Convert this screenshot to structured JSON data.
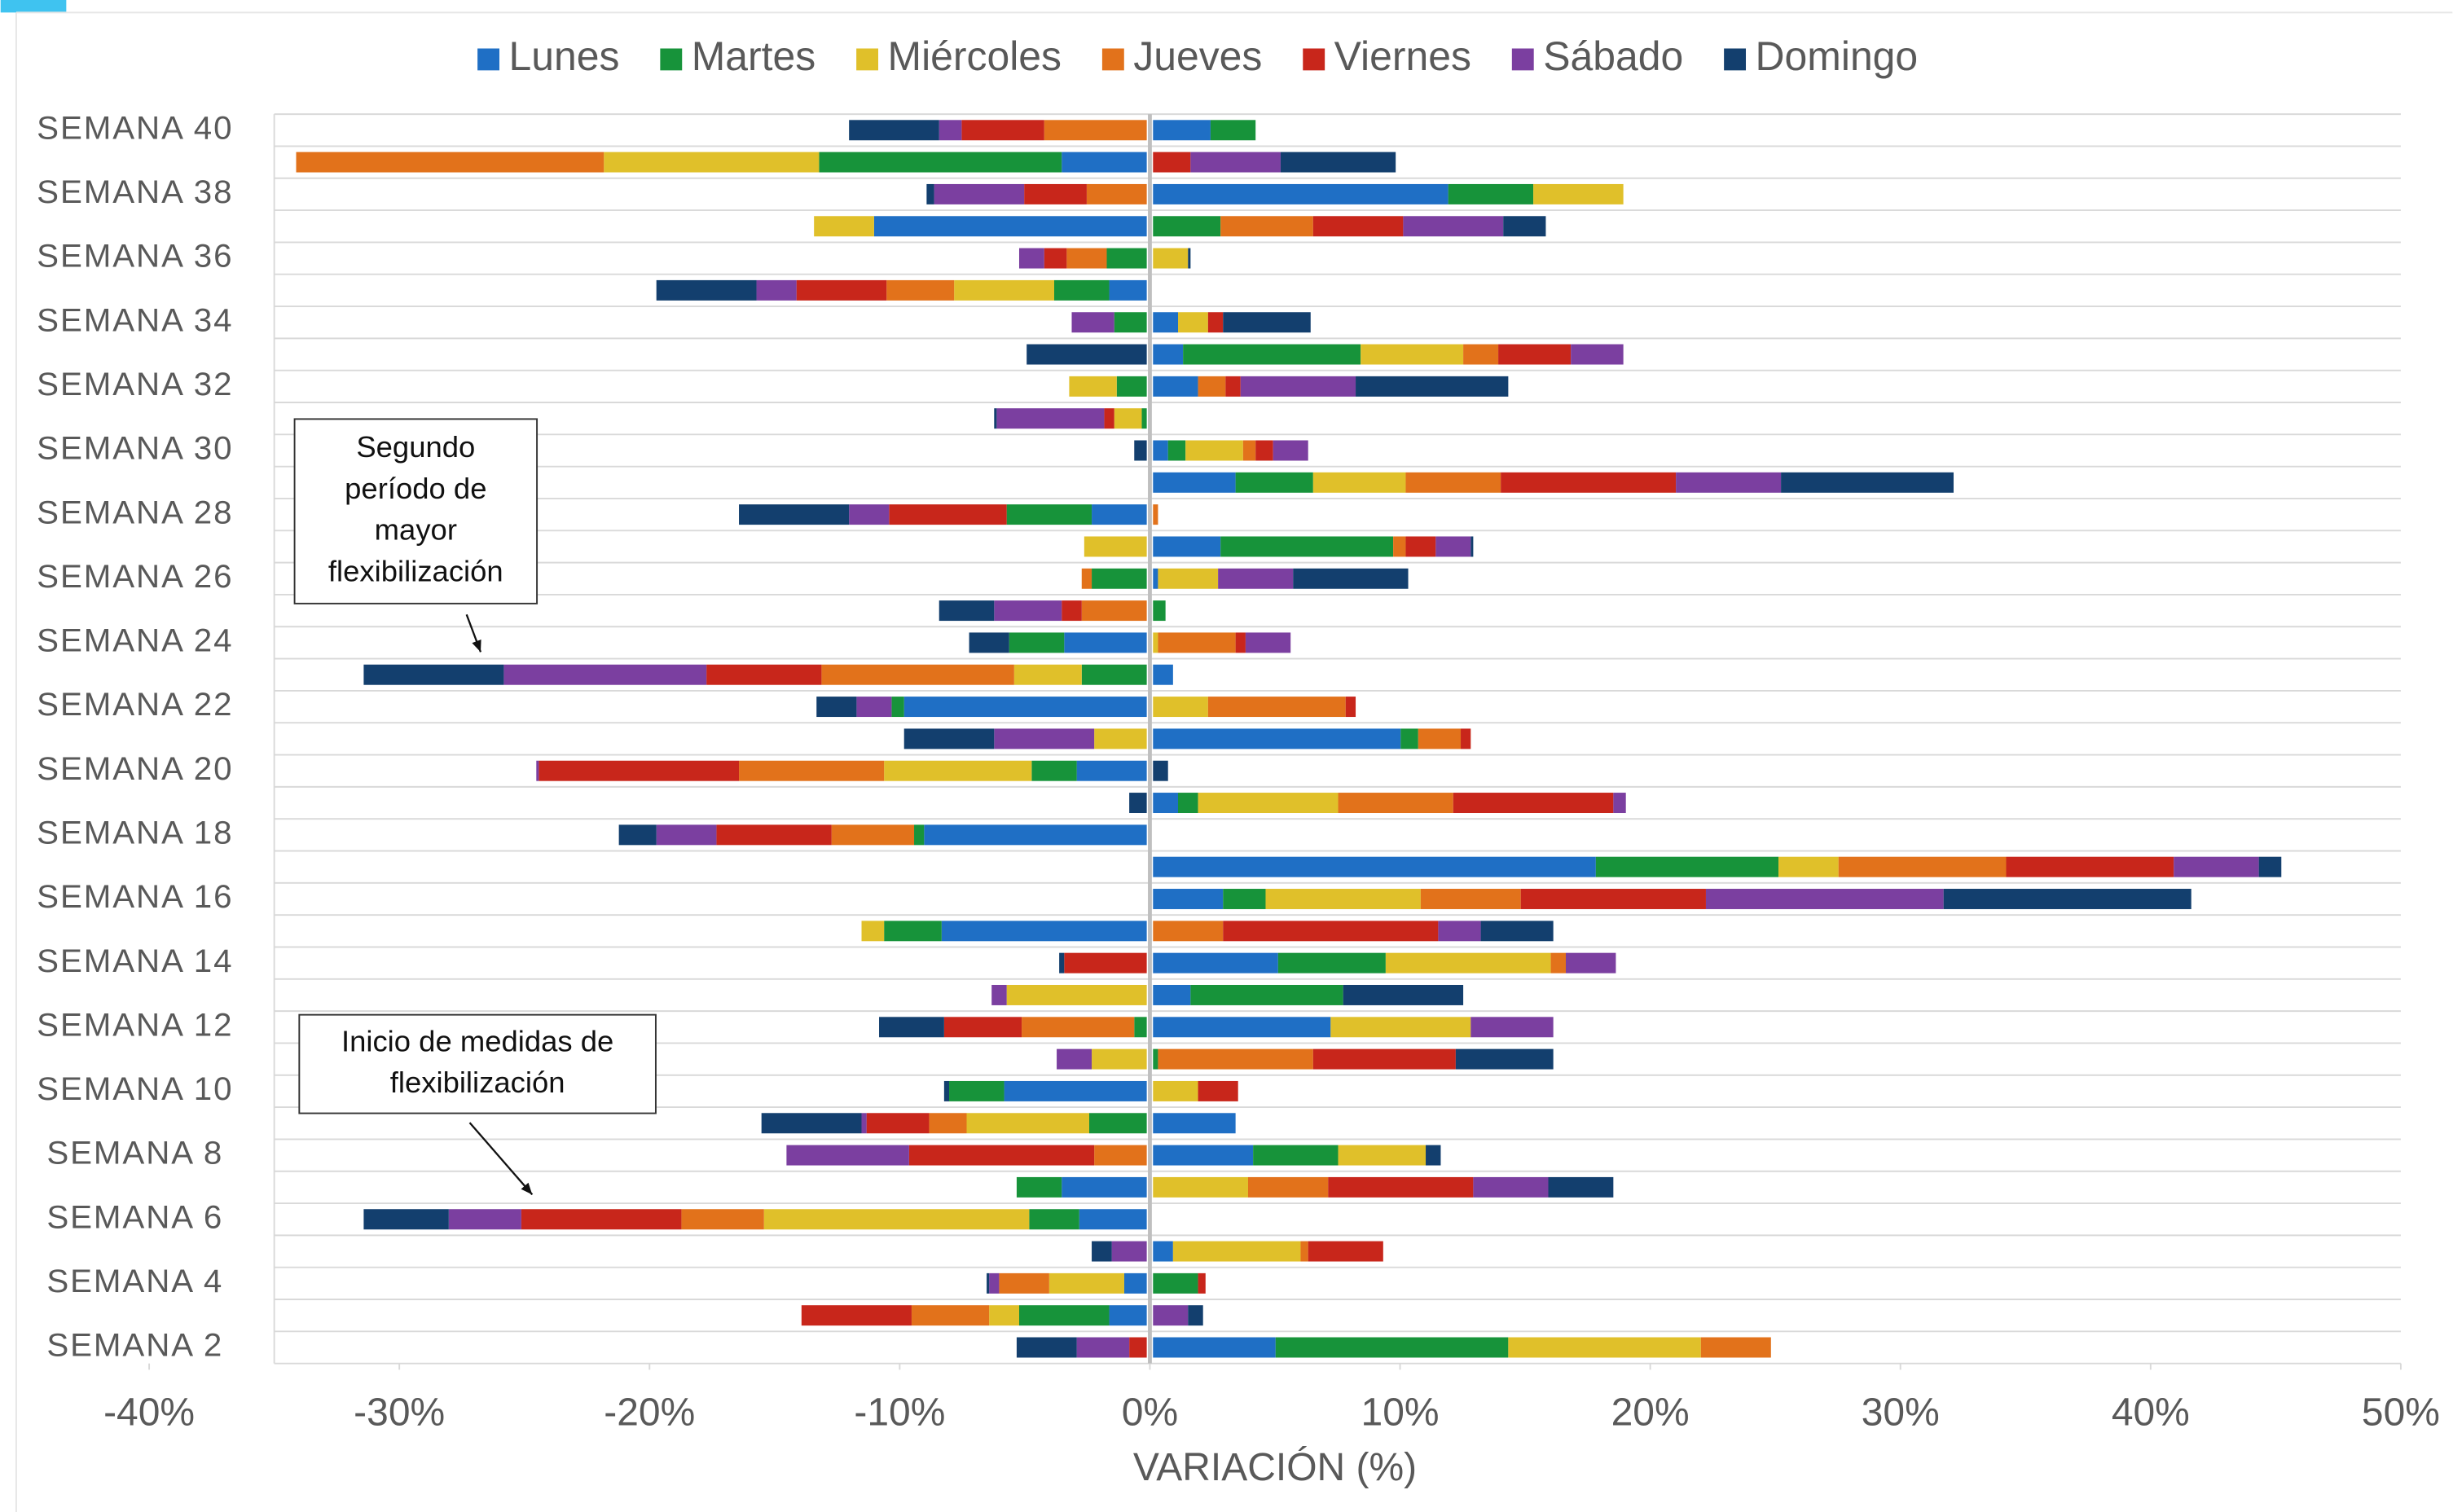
{
  "chart_data": {
    "type": "diverging-stacked-bar",
    "orientation": "horizontal",
    "categories": [
      "SEMANA 40",
      null,
      "SEMANA 38",
      null,
      "SEMANA 36",
      null,
      "SEMANA 34",
      null,
      "SEMANA 32",
      null,
      "SEMANA 30",
      null,
      "SEMANA 28",
      null,
      "SEMANA 26",
      null,
      "SEMANA 24",
      null,
      "SEMANA 22",
      null,
      "SEMANA 20",
      null,
      "SEMANA 18",
      null,
      "SEMANA 16",
      null,
      "SEMANA 14",
      null,
      "SEMANA 12",
      null,
      "SEMANA 10",
      null,
      "SEMANA 8",
      null,
      "SEMANA 6",
      null,
      "SEMANA 4",
      null,
      "SEMANA 2"
    ],
    "series": [
      {
        "name": "Lunes",
        "color": "#1f6fc5",
        "values": [
          2.3,
          -3.4,
          11.8,
          -10.9,
          0,
          -1.5,
          1.0,
          1.2,
          1.8,
          0,
          0.6,
          3.3,
          -2.2,
          2.7,
          0.2,
          0,
          -3.3,
          0.8,
          -9.7,
          9.9,
          -2.8,
          1.0,
          -8.9,
          17.7,
          2.8,
          -8.2,
          5.0,
          1.5,
          7.1,
          0,
          -5.7,
          3.3,
          4.0,
          -3.4,
          -2.7,
          0.8,
          -0.9,
          -1.5,
          4.9
        ]
      },
      {
        "name": "Martes",
        "color": "#17933a",
        "values": [
          1.8,
          -9.7,
          3.4,
          2.7,
          -1.6,
          -2.2,
          -1.3,
          7.1,
          -1.2,
          -0.2,
          0.7,
          3.1,
          -3.4,
          6.9,
          -2.2,
          0.5,
          -2.2,
          -2.6,
          -0.5,
          0.7,
          -1.8,
          0.8,
          -0.4,
          7.3,
          1.7,
          -2.3,
          4.3,
          6.1,
          -0.5,
          0.2,
          -2.2,
          -2.3,
          3.4,
          -1.8,
          -2.0,
          0,
          1.8,
          -3.6,
          9.3
        ]
      },
      {
        "name": "Miércoles",
        "color": "#e0c02a",
        "values": [
          0,
          -8.6,
          3.6,
          -2.4,
          1.4,
          -4.0,
          1.2,
          4.1,
          -1.9,
          -1.1,
          2.3,
          3.7,
          0,
          -2.5,
          2.4,
          0,
          0.2,
          -2.7,
          2.2,
          -2.1,
          -5.9,
          5.6,
          0,
          2.4,
          6.2,
          -0.9,
          6.6,
          -5.6,
          5.6,
          -2.2,
          1.8,
          -4.9,
          3.5,
          3.8,
          -10.6,
          5.1,
          -3.0,
          -1.2,
          7.7
        ]
      },
      {
        "name": "Jueves",
        "color": "#e2721b",
        "values": [
          -4.1,
          -12.3,
          -2.4,
          3.7,
          -1.6,
          -2.7,
          0,
          1.4,
          1.1,
          0,
          0.5,
          3.8,
          0.2,
          0.5,
          -0.4,
          -2.6,
          3.1,
          -7.7,
          5.5,
          1.7,
          -5.8,
          4.6,
          -3.3,
          6.7,
          4.0,
          2.8,
          0.6,
          0,
          -4.5,
          6.2,
          0,
          -1.5,
          -2.1,
          3.2,
          -3.3,
          0.3,
          -2.0,
          -3.1,
          2.8
        ]
      },
      {
        "name": "Viernes",
        "color": "#c8261b",
        "values": [
          -3.3,
          1.5,
          -2.5,
          3.6,
          -0.9,
          -3.6,
          0.6,
          2.9,
          0.6,
          -0.4,
          0.7,
          7.0,
          -4.7,
          1.2,
          0,
          -0.8,
          0.4,
          -4.6,
          0.4,
          0.4,
          -8.0,
          6.4,
          -4.6,
          6.7,
          7.4,
          8.6,
          -3.3,
          0,
          -3.1,
          5.7,
          1.6,
          -2.5,
          -7.4,
          5.8,
          -6.4,
          3.0,
          0.3,
          -4.4,
          -0.7
        ]
      },
      {
        "name": "Sábado",
        "color": "#7b3fa0",
        "values": [
          -0.9,
          3.6,
          -3.6,
          4.0,
          -1.0,
          -1.6,
          -1.7,
          2.1,
          4.6,
          -4.3,
          1.4,
          4.2,
          -1.6,
          1.4,
          3.0,
          -2.7,
          1.8,
          -8.1,
          -1.4,
          -4.0,
          -0.1,
          0.5,
          -2.4,
          3.4,
          9.5,
          1.7,
          2.0,
          -0.6,
          3.3,
          -1.4,
          0,
          -0.2,
          -4.9,
          3.0,
          -2.9,
          -1.4,
          -0.4,
          1.4,
          -2.1
        ]
      },
      {
        "name": "Domingo",
        "color": "#133f6e",
        "values": [
          -3.6,
          4.6,
          -0.3,
          1.7,
          0.1,
          -4.0,
          3.5,
          -4.8,
          6.1,
          -0.1,
          -0.5,
          6.9,
          -4.4,
          0.1,
          4.6,
          -2.2,
          -1.6,
          -5.6,
          -1.6,
          -3.6,
          0.6,
          -0.7,
          -1.5,
          0.9,
          9.9,
          2.9,
          -0.2,
          4.8,
          -2.6,
          3.9,
          -0.2,
          -4.0,
          0.6,
          2.6,
          -3.4,
          -0.8,
          -0.1,
          0.6,
          -2.4
        ]
      }
    ],
    "x_label": "VARIACIÓN (%)",
    "xlim": [
      -40,
      50
    ],
    "xticks": [
      {
        "value": -40,
        "label": "-40%"
      },
      {
        "value": -30,
        "label": "-30%"
      },
      {
        "value": -20,
        "label": "-20%"
      },
      {
        "value": -10,
        "label": "-10%"
      },
      {
        "value": 0,
        "label": "0%"
      },
      {
        "value": 10,
        "label": "10%"
      },
      {
        "value": 20,
        "label": "20%"
      },
      {
        "value": 30,
        "label": "30%"
      },
      {
        "value": 40,
        "label": "40%"
      },
      {
        "value": 50,
        "label": "50%"
      }
    ],
    "legend": "top",
    "annotations": [
      {
        "lines": [
          "Segundo",
          "período de",
          "mayor",
          "flexibilización"
        ]
      },
      {
        "lines": [
          "Inicio de medidas de",
          "flexibilización"
        ]
      }
    ]
  }
}
